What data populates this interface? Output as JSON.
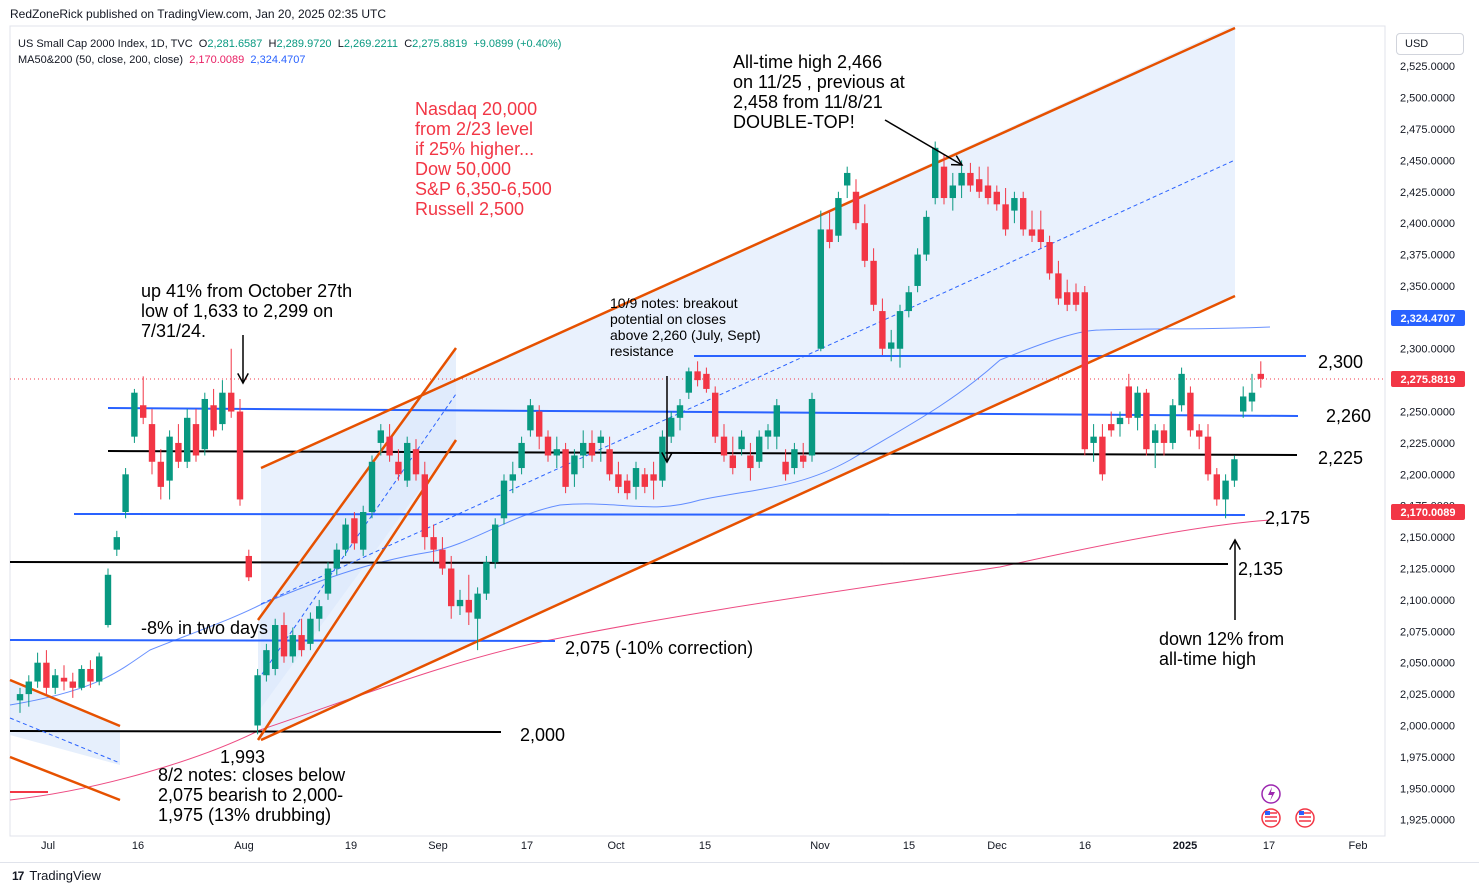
{
  "header": {
    "published": "RedZoneRick published on TradingView.com, Jan 20, 2025 02:35 UTC",
    "symbol_line": "US Small Cap 2000 Index, 1D, TVC",
    "ohlc": {
      "o_label": "O",
      "o": "2,281.6587",
      "h_label": "H",
      "h": "2,289.9720",
      "l_label": "L",
      "l": "2,269.2211",
      "c_label": "C",
      "c": "2,275.8819",
      "chg": "+9.0899 (+0.40%)"
    },
    "ma_line": "MA50&200 (50, close, 200, close)",
    "ma50_value": "2,170.0089",
    "ma200_value": "2,324.4707",
    "currency": "USD",
    "footer_brand": "TradingView"
  },
  "colors": {
    "up": "#089981",
    "down": "#f23645",
    "channel": "#e65100",
    "support_blue": "#2962ff",
    "support_black": "#000000",
    "ma_blue": "#2962ff",
    "ma_pink": "#e91e63",
    "annotation_red": "#f23645",
    "shade": "#dbe8fb"
  },
  "chart_data": {
    "type": "candlestick",
    "ylim": [
      1912,
      2557
    ],
    "y_ticks": [
      "2,525.0000",
      "2,500.0000",
      "2,475.0000",
      "2,450.0000",
      "2,425.0000",
      "2,400.0000",
      "2,375.0000",
      "2,350.0000",
      "2,325.0000",
      "2,300.0000",
      "2,275.0000",
      "2,250.0000",
      "2,225.0000",
      "2,200.0000",
      "2,175.0000",
      "2,150.0000",
      "2,125.0000",
      "2,100.0000",
      "2,075.0000",
      "2,050.0000",
      "2,025.0000",
      "2,000.0000",
      "1,975.0000",
      "1,950.0000",
      "1,925.0000"
    ],
    "x_ticks": [
      "Jul",
      "16",
      "Aug",
      "19",
      "Sep",
      "17",
      "Oct",
      "15",
      "Nov",
      "15",
      "Dec",
      "16",
      "2025",
      "17",
      "Feb"
    ],
    "price_badges": [
      {
        "label": "2,324.4707",
        "value": 2324.47,
        "color": "#2962ff"
      },
      {
        "label": "2,275.8819",
        "value": 2275.88,
        "color": "#f23645"
      },
      {
        "label": "2,170.0089",
        "value": 2170.01,
        "color": "#f23645"
      }
    ],
    "last_close": 2275.88,
    "candles": [
      [
        2020,
        2030,
        2010,
        2025
      ],
      [
        2025,
        2040,
        2015,
        2035
      ],
      [
        2035,
        2058,
        2030,
        2050
      ],
      [
        2050,
        2060,
        2025,
        2030
      ],
      [
        2030,
        2045,
        2025,
        2040
      ],
      [
        2038,
        2048,
        2028,
        2035
      ],
      [
        2035,
        2042,
        2022,
        2030
      ],
      [
        2030,
        2048,
        2028,
        2045
      ],
      [
        2045,
        2052,
        2030,
        2035
      ],
      [
        2035,
        2058,
        2032,
        2055
      ],
      [
        2080,
        2125,
        2078,
        2120
      ],
      [
        2140,
        2155,
        2135,
        2150
      ],
      [
        2170,
        2205,
        2165,
        2200
      ],
      [
        2230,
        2268,
        2225,
        2265
      ],
      [
        2255,
        2278,
        2240,
        2245
      ],
      [
        2240,
        2252,
        2200,
        2210
      ],
      [
        2210,
        2220,
        2180,
        2190
      ],
      [
        2195,
        2235,
        2180,
        2230
      ],
      [
        2225,
        2240,
        2205,
        2210
      ],
      [
        2210,
        2252,
        2205,
        2245
      ],
      [
        2240,
        2252,
        2210,
        2215
      ],
      [
        2220,
        2265,
        2215,
        2260
      ],
      [
        2255,
        2268,
        2230,
        2235
      ],
      [
        2240,
        2275,
        2235,
        2265
      ],
      [
        2265,
        2300,
        2245,
        2250
      ],
      [
        2250,
        2260,
        2175,
        2180
      ],
      [
        2135,
        2140,
        2115,
        2118
      ],
      [
        2000,
        2045,
        1993,
        2040
      ],
      [
        2040,
        2065,
        2035,
        2060
      ],
      [
        2045,
        2085,
        2040,
        2080
      ],
      [
        2080,
        2090,
        2050,
        2055
      ],
      [
        2055,
        2078,
        2050,
        2072
      ],
      [
        2072,
        2085,
        2055,
        2060
      ],
      [
        2065,
        2090,
        2060,
        2085
      ],
      [
        2085,
        2100,
        2075,
        2095
      ],
      [
        2105,
        2130,
        2100,
        2125
      ],
      [
        2125,
        2145,
        2120,
        2140
      ],
      [
        2140,
        2165,
        2135,
        2160
      ],
      [
        2165,
        2170,
        2140,
        2145
      ],
      [
        2140,
        2175,
        2135,
        2170
      ],
      [
        2170,
        2215,
        2165,
        2210
      ],
      [
        2225,
        2240,
        2215,
        2235
      ],
      [
        2230,
        2240,
        2210,
        2215
      ],
      [
        2210,
        2220,
        2195,
        2200
      ],
      [
        2195,
        2230,
        2190,
        2225
      ],
      [
        2220,
        2228,
        2195,
        2200
      ],
      [
        2200,
        2210,
        2140,
        2150
      ],
      [
        2150,
        2160,
        2130,
        2140
      ],
      [
        2140,
        2150,
        2120,
        2125
      ],
      [
        2125,
        2135,
        2085,
        2095
      ],
      [
        2095,
        2108,
        2088,
        2100
      ],
      [
        2100,
        2120,
        2080,
        2090
      ],
      [
        2085,
        2110,
        2060,
        2105
      ],
      [
        2105,
        2135,
        2100,
        2130
      ],
      [
        2130,
        2165,
        2125,
        2160
      ],
      [
        2165,
        2200,
        2160,
        2195
      ],
      [
        2195,
        2210,
        2185,
        2200
      ],
      [
        2205,
        2230,
        2200,
        2225
      ],
      [
        2235,
        2260,
        2230,
        2255
      ],
      [
        2250,
        2255,
        2220,
        2230
      ],
      [
        2230,
        2235,
        2210,
        2215
      ],
      [
        2215,
        2230,
        2205,
        2220
      ],
      [
        2220,
        2225,
        2185,
        2190
      ],
      [
        2200,
        2220,
        2190,
        2215
      ],
      [
        2215,
        2235,
        2205,
        2225
      ],
      [
        2225,
        2235,
        2210,
        2215
      ],
      [
        2225,
        2235,
        2210,
        2230
      ],
      [
        2220,
        2230,
        2195,
        2200
      ],
      [
        2200,
        2210,
        2185,
        2190
      ],
      [
        2195,
        2200,
        2180,
        2185
      ],
      [
        2190,
        2210,
        2180,
        2205
      ],
      [
        2200,
        2205,
        2185,
        2190
      ],
      [
        2200,
        2210,
        2180,
        2195
      ],
      [
        2195,
        2235,
        2190,
        2230
      ],
      [
        2230,
        2250,
        2225,
        2245
      ],
      [
        2245,
        2260,
        2235,
        2255
      ],
      [
        2265,
        2285,
        2260,
        2282
      ],
      [
        2282,
        2290,
        2270,
        2275
      ],
      [
        2280,
        2285,
        2265,
        2268
      ],
      [
        2265,
        2270,
        2225,
        2230
      ],
      [
        2230,
        2240,
        2210,
        2215
      ],
      [
        2215,
        2230,
        2200,
        2205
      ],
      [
        2220,
        2235,
        2215,
        2230
      ],
      [
        2215,
        2225,
        2195,
        2205
      ],
      [
        2210,
        2235,
        2205,
        2230
      ],
      [
        2230,
        2240,
        2220,
        2235
      ],
      [
        2230,
        2260,
        2220,
        2255
      ],
      [
        2210,
        2220,
        2195,
        2200
      ],
      [
        2205,
        2225,
        2200,
        2220
      ],
      [
        2215,
        2225,
        2205,
        2210
      ],
      [
        2215,
        2265,
        2210,
        2260
      ],
      [
        2300,
        2410,
        2298,
        2395
      ],
      [
        2395,
        2410,
        2380,
        2385
      ],
      [
        2390,
        2425,
        2385,
        2420
      ],
      [
        2430,
        2445,
        2420,
        2440
      ],
      [
        2425,
        2435,
        2395,
        2400
      ],
      [
        2400,
        2415,
        2365,
        2370
      ],
      [
        2370,
        2380,
        2330,
        2335
      ],
      [
        2330,
        2340,
        2295,
        2300
      ],
      [
        2300,
        2315,
        2290,
        2305
      ],
      [
        2300,
        2335,
        2285,
        2330
      ],
      [
        2330,
        2350,
        2325,
        2345
      ],
      [
        2350,
        2380,
        2345,
        2375
      ],
      [
        2375,
        2410,
        2370,
        2405
      ],
      [
        2420,
        2465,
        2415,
        2460
      ],
      [
        2445,
        2455,
        2415,
        2420
      ],
      [
        2420,
        2440,
        2410,
        2430
      ],
      [
        2430,
        2450,
        2420,
        2440
      ],
      [
        2440,
        2448,
        2425,
        2430
      ],
      [
        2435,
        2445,
        2420,
        2425
      ],
      [
        2430,
        2445,
        2415,
        2420
      ],
      [
        2425,
        2430,
        2410,
        2415
      ],
      [
        2415,
        2428,
        2390,
        2395
      ],
      [
        2410,
        2425,
        2400,
        2420
      ],
      [
        2420,
        2425,
        2390,
        2395
      ],
      [
        2395,
        2410,
        2385,
        2390
      ],
      [
        2395,
        2410,
        2380,
        2385
      ],
      [
        2385,
        2390,
        2355,
        2360
      ],
      [
        2360,
        2370,
        2335,
        2340
      ],
      [
        2345,
        2355,
        2330,
        2335
      ],
      [
        2345,
        2352,
        2330,
        2335
      ],
      [
        2345,
        2350,
        2215,
        2220
      ],
      [
        2225,
        2240,
        2210,
        2230
      ],
      [
        2230,
        2240,
        2195,
        2200
      ],
      [
        2240,
        2250,
        2230,
        2235
      ],
      [
        2240,
        2250,
        2230,
        2245
      ],
      [
        2270,
        2280,
        2240,
        2245
      ],
      [
        2245,
        2270,
        2235,
        2265
      ],
      [
        2265,
        2268,
        2215,
        2220
      ],
      [
        2225,
        2240,
        2205,
        2235
      ],
      [
        2235,
        2240,
        2215,
        2225
      ],
      [
        2225,
        2260,
        2220,
        2255
      ],
      [
        2255,
        2285,
        2250,
        2280
      ],
      [
        2265,
        2270,
        2230,
        2235
      ],
      [
        2235,
        2240,
        2220,
        2230
      ],
      [
        2230,
        2240,
        2195,
        2200
      ],
      [
        2200,
        2205,
        2175,
        2180
      ],
      [
        2180,
        2200,
        2165,
        2195
      ],
      [
        2195,
        2215,
        2190,
        2212
      ],
      [
        2250,
        2270,
        2245,
        2262
      ],
      [
        2258,
        2280,
        2250,
        2265
      ],
      [
        2280,
        2290,
        2269,
        2276
      ]
    ],
    "annotations": {
      "red_note": [
        "Nasdaq 20,000",
        "from 2/23 level",
        "if 25% higher...",
        "Dow 50,000",
        "S&P 6,350-6,500",
        "Russell 2,500"
      ],
      "ath_note": [
        "All-time high 2,466",
        "on 11/25 , previous at",
        "2,458 from 11/8/21",
        "DOUBLE-TOP!"
      ],
      "up41_note": [
        "up 41% from October 27th",
        "low of 1,633 to 2,299 on",
        "7/31/24."
      ],
      "breakout_note": [
        "10/9 notes: breakout",
        "potential on closes",
        "above 2,260 (July, Sept)",
        "resistance"
      ],
      "down12_note": [
        "down 12% from",
        "all-time high"
      ],
      "aug2_note": [
        "8/2 notes: closes below",
        "2,075 bearish to 2,000-",
        "1,975 (13% drubbing)"
      ],
      "minus8": "-8% in two days",
      "low1993": "1,993",
      "level_2300": "2,300",
      "level_2260": "2,260",
      "level_2225": "2,225",
      "level_2175": "2,175",
      "level_2135": "2,135",
      "level_2075": "2,075 (-10% correction)",
      "level_2000": "2,000"
    }
  }
}
